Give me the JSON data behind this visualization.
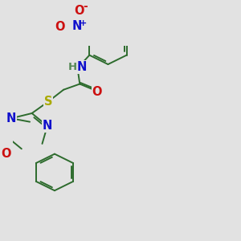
{
  "bg_color": "#e2e2e2",
  "bond_color": "#2d6b2d",
  "bond_width": 1.4,
  "atom_colors": {
    "N": "#1010cc",
    "O": "#cc1010",
    "S": "#aaaa00",
    "H": "#558855",
    "C": "#2d6b2d"
  },
  "fs": 10.5
}
